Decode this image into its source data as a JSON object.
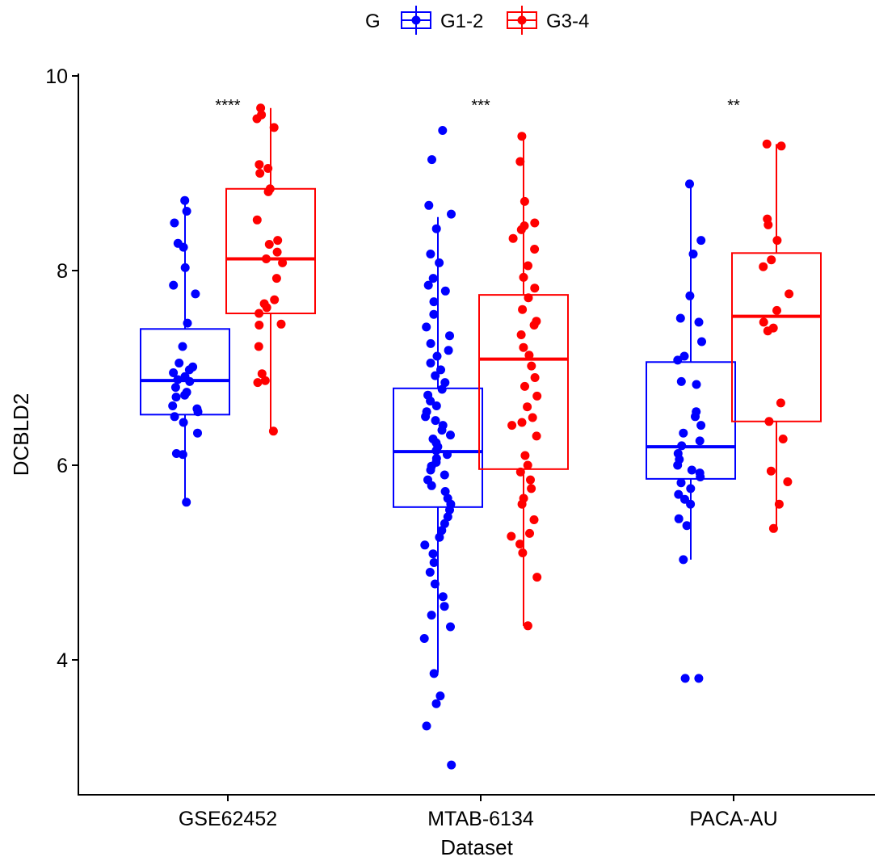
{
  "chart_data": {
    "type": "box",
    "xlabel": "Dataset",
    "ylabel": "DCBLD2",
    "ylim": [
      2.7,
      10.0
    ],
    "yticks": [
      4,
      6,
      8,
      10
    ],
    "categories": [
      "GSE62452",
      "MTAB-6134",
      "PACA-AU"
    ],
    "legend": {
      "title": "G",
      "position": "top",
      "entries": [
        {
          "name": "G1-2",
          "color": "#0000ff"
        },
        {
          "name": "G3-4",
          "color": "#ff0000"
        }
      ]
    },
    "significance": [
      "****",
      "***",
      "**"
    ],
    "series": [
      {
        "name": "G1-2",
        "color": "#0000ff",
        "boxes": [
          {
            "category": "GSE62452",
            "whisker_low": 5.62,
            "q1": 6.52,
            "median": 6.87,
            "q3": 7.4,
            "whisker_high": 8.72
          },
          {
            "category": "MTAB-6134",
            "whisker_low": 3.87,
            "q1": 5.57,
            "median": 6.14,
            "q3": 6.79,
            "whisker_high": 8.55
          },
          {
            "category": "PACA-AU",
            "whisker_low": 5.03,
            "q1": 5.86,
            "median": 6.19,
            "q3": 7.06,
            "whisker_high": 8.89
          }
        ],
        "points": {
          "GSE62452": [
            8.72,
            8.61,
            8.49,
            8.28,
            8.24,
            8.03,
            7.85,
            7.76,
            7.46,
            7.22,
            7.05,
            7.01,
            6.98,
            6.95,
            6.91,
            6.88,
            6.86,
            6.8,
            6.75,
            6.72,
            6.7,
            6.61,
            6.58,
            6.55,
            6.5,
            6.44,
            6.33,
            6.12,
            6.11,
            5.62
          ],
          "MTAB-6134": [
            9.44,
            9.14,
            8.67,
            8.58,
            8.43,
            8.17,
            8.08,
            7.92,
            7.85,
            7.79,
            7.68,
            7.55,
            7.42,
            7.33,
            7.25,
            7.18,
            7.12,
            7.05,
            6.98,
            6.92,
            6.85,
            6.78,
            6.72,
            6.66,
            6.61,
            6.55,
            6.5,
            6.46,
            6.41,
            6.36,
            6.31,
            6.27,
            6.23,
            6.19,
            6.15,
            6.11,
            6.07,
            6.03,
            5.99,
            5.95,
            5.9,
            5.85,
            5.79,
            5.73,
            5.66,
            5.6,
            5.54,
            5.47,
            5.4,
            5.33,
            5.26,
            5.18,
            5.09,
            5.0,
            4.9,
            4.78,
            4.65,
            4.55,
            4.46,
            4.34,
            4.22,
            3.86,
            3.63,
            3.55,
            3.32,
            2.92
          ],
          "PACA-AU": [
            8.89,
            8.31,
            8.17,
            7.74,
            7.51,
            7.47,
            7.27,
            7.12,
            7.08,
            6.86,
            6.83,
            6.55,
            6.5,
            6.41,
            6.33,
            6.25,
            6.2,
            6.12,
            6.06,
            6.0,
            5.95,
            5.92,
            5.88,
            5.82,
            5.76,
            5.7,
            5.65,
            5.6,
            5.45,
            5.38,
            5.03,
            3.81,
            3.81
          ]
        }
      },
      {
        "name": "G3-4",
        "color": "#ff0000",
        "boxes": [
          {
            "category": "GSE62452",
            "whisker_low": 6.35,
            "q1": 7.56,
            "median": 8.12,
            "q3": 8.84,
            "whisker_high": 9.67
          },
          {
            "category": "MTAB-6134",
            "whisker_low": 4.35,
            "q1": 5.96,
            "median": 7.09,
            "q3": 7.75,
            "whisker_high": 9.38
          },
          {
            "category": "PACA-AU",
            "whisker_low": 5.35,
            "q1": 6.45,
            "median": 7.53,
            "q3": 8.18,
            "whisker_high": 9.3
          }
        ],
        "points": {
          "GSE62452": [
            9.67,
            9.6,
            9.56,
            9.47,
            9.09,
            9.05,
            9.0,
            8.84,
            8.81,
            8.52,
            8.31,
            8.27,
            8.19,
            8.12,
            8.08,
            7.92,
            7.7,
            7.66,
            7.62,
            7.56,
            7.45,
            7.44,
            7.22,
            6.94,
            6.87,
            6.85,
            6.35
          ],
          "MTAB-6134": [
            9.38,
            9.12,
            8.71,
            8.49,
            8.46,
            8.42,
            8.33,
            8.22,
            8.05,
            7.93,
            7.82,
            7.72,
            7.6,
            7.48,
            7.44,
            7.34,
            7.21,
            7.13,
            7.02,
            6.9,
            6.81,
            6.71,
            6.6,
            6.49,
            6.44,
            6.41,
            6.3,
            6.1,
            6.0,
            5.93,
            5.85,
            5.76,
            5.66,
            5.6,
            5.44,
            5.3,
            5.27,
            5.19,
            5.1,
            4.85,
            4.35
          ],
          "PACA-AU": [
            9.3,
            9.28,
            8.53,
            8.47,
            8.31,
            8.11,
            8.04,
            7.76,
            7.59,
            7.47,
            7.41,
            7.38,
            6.64,
            6.45,
            6.27,
            5.94,
            5.83,
            5.6,
            5.35
          ]
        }
      }
    ]
  }
}
